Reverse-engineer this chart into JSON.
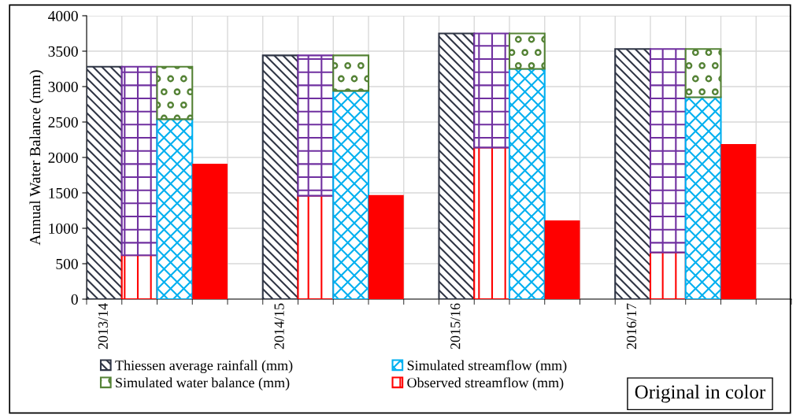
{
  "chart_data": {
    "type": "bar",
    "stacked": true,
    "categories": [
      "2013/14",
      null,
      null,
      null,
      null,
      "2014/15",
      null,
      null,
      null,
      null,
      "2015/16",
      null,
      null,
      null,
      null,
      "2016/17",
      null,
      null,
      null,
      null
    ],
    "series": [
      {
        "name": "Thiessen average rainfall (mm)",
        "color": "#2f3545",
        "values": [
          3280,
          null,
          null,
          null,
          null,
          3440,
          null,
          null,
          null,
          null,
          3750,
          null,
          null,
          null,
          null,
          3530,
          null,
          null,
          null,
          null
        ]
      },
      {
        "name": "Observed streamflow (mm)",
        "color": "#ff0000",
        "values": [
          null,
          620,
          null,
          null,
          null,
          null,
          1460,
          null,
          null,
          null,
          null,
          2140,
          null,
          null,
          null,
          null,
          660,
          null,
          null,
          null
        ]
      },
      {
        "color": "#7030a0",
        "values": [
          null,
          2660,
          null,
          null,
          null,
          null,
          1980,
          null,
          null,
          null,
          null,
          1610,
          null,
          null,
          null,
          null,
          2870,
          null,
          null,
          null
        ]
      },
      {
        "name": "Simulated streamflow (mm)",
        "color": "#00b0f0",
        "values": [
          null,
          null,
          2540,
          null,
          null,
          null,
          null,
          2940,
          null,
          null,
          null,
          null,
          3250,
          null,
          null,
          null,
          null,
          2850,
          null,
          null
        ]
      },
      {
        "name": "Simulated water balance (mm)",
        "color": "#548235",
        "values": [
          null,
          null,
          740,
          null,
          null,
          null,
          null,
          500,
          null,
          null,
          null,
          null,
          500,
          null,
          null,
          null,
          null,
          680,
          null,
          null
        ]
      },
      {
        "color": "#ff0000",
        "values": [
          null,
          null,
          null,
          1910,
          null,
          null,
          null,
          null,
          1470,
          null,
          null,
          null,
          null,
          1110,
          null,
          null,
          null,
          null,
          2190,
          null
        ]
      }
    ],
    "ylabel": "Annual Water Balance (mm)",
    "ylim": [
      0,
      4000
    ],
    "yticks": [
      0,
      500,
      1000,
      1500,
      2000,
      2500,
      3000,
      3500,
      4000
    ],
    "grid": true,
    "legend": "bottom left",
    "annotations": [
      "Original in color"
    ]
  }
}
